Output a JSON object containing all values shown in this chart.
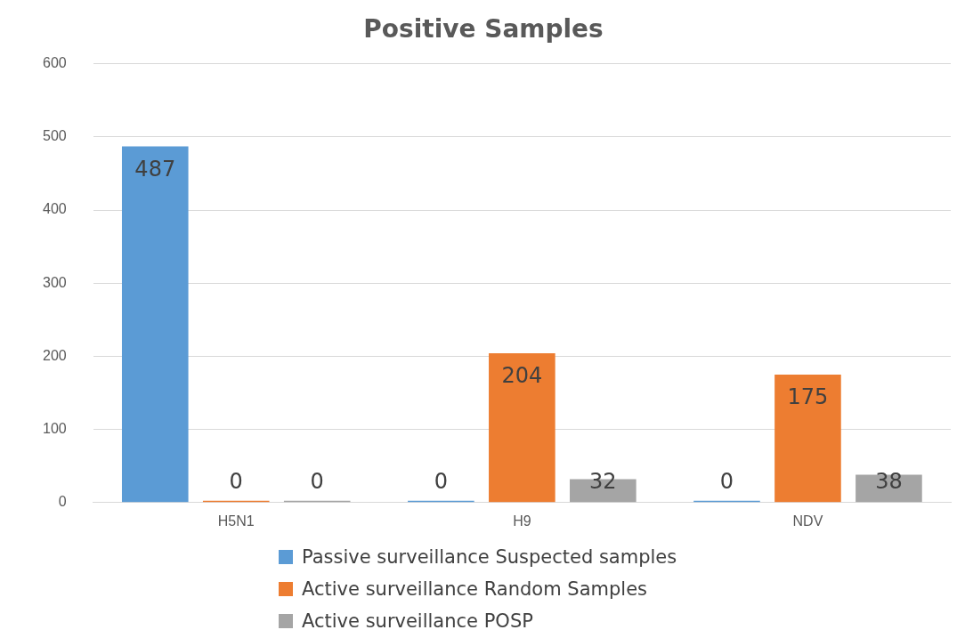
{
  "chart_data": {
    "type": "bar",
    "title": "Positive Samples",
    "categories": [
      "H5N1",
      "H9",
      "NDV"
    ],
    "series": [
      {
        "name": "Passive surveillance Suspected samples",
        "color": "#5b9bd5",
        "values": [
          487,
          0,
          0
        ]
      },
      {
        "name": "Active surveillance Random Samples",
        "color": "#ed7d31",
        "values": [
          0,
          204,
          175
        ]
      },
      {
        "name": "Active surveillance POSP",
        "color": "#a5a5a5",
        "values": [
          0,
          32,
          38
        ]
      }
    ],
    "ylim": [
      0,
      600
    ],
    "yticks": [
      0,
      100,
      200,
      300,
      400,
      500,
      600
    ],
    "grid": "y",
    "legend": "bottom",
    "data_labels": true
  }
}
